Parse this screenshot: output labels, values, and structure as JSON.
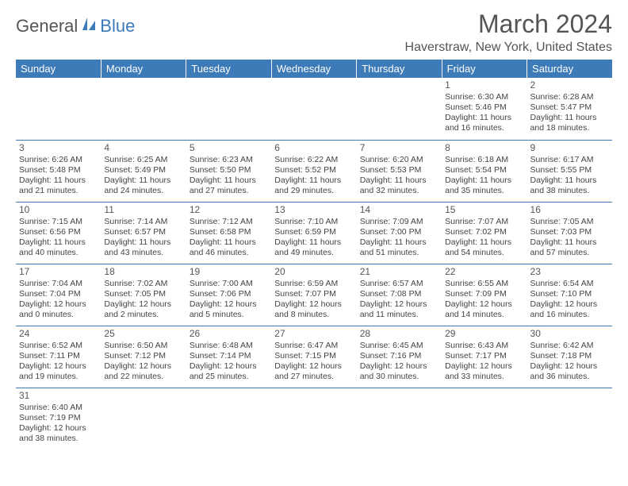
{
  "logo": {
    "text1": "General",
    "text2": "Blue"
  },
  "title": "March 2024",
  "subtitle": "Haverstraw, New York, United States",
  "headers": [
    "Sunday",
    "Monday",
    "Tuesday",
    "Wednesday",
    "Thursday",
    "Friday",
    "Saturday"
  ],
  "colors": {
    "header_bg": "#3d7ab8",
    "text": "#555555",
    "border": "#3d7ab8"
  },
  "weeks": [
    [
      null,
      null,
      null,
      null,
      null,
      {
        "n": "1",
        "sr": "Sunrise: 6:30 AM",
        "ss": "Sunset: 5:46 PM",
        "d1": "Daylight: 11 hours",
        "d2": "and 16 minutes."
      },
      {
        "n": "2",
        "sr": "Sunrise: 6:28 AM",
        "ss": "Sunset: 5:47 PM",
        "d1": "Daylight: 11 hours",
        "d2": "and 18 minutes."
      }
    ],
    [
      {
        "n": "3",
        "sr": "Sunrise: 6:26 AM",
        "ss": "Sunset: 5:48 PM",
        "d1": "Daylight: 11 hours",
        "d2": "and 21 minutes."
      },
      {
        "n": "4",
        "sr": "Sunrise: 6:25 AM",
        "ss": "Sunset: 5:49 PM",
        "d1": "Daylight: 11 hours",
        "d2": "and 24 minutes."
      },
      {
        "n": "5",
        "sr": "Sunrise: 6:23 AM",
        "ss": "Sunset: 5:50 PM",
        "d1": "Daylight: 11 hours",
        "d2": "and 27 minutes."
      },
      {
        "n": "6",
        "sr": "Sunrise: 6:22 AM",
        "ss": "Sunset: 5:52 PM",
        "d1": "Daylight: 11 hours",
        "d2": "and 29 minutes."
      },
      {
        "n": "7",
        "sr": "Sunrise: 6:20 AM",
        "ss": "Sunset: 5:53 PM",
        "d1": "Daylight: 11 hours",
        "d2": "and 32 minutes."
      },
      {
        "n": "8",
        "sr": "Sunrise: 6:18 AM",
        "ss": "Sunset: 5:54 PM",
        "d1": "Daylight: 11 hours",
        "d2": "and 35 minutes."
      },
      {
        "n": "9",
        "sr": "Sunrise: 6:17 AM",
        "ss": "Sunset: 5:55 PM",
        "d1": "Daylight: 11 hours",
        "d2": "and 38 minutes."
      }
    ],
    [
      {
        "n": "10",
        "sr": "Sunrise: 7:15 AM",
        "ss": "Sunset: 6:56 PM",
        "d1": "Daylight: 11 hours",
        "d2": "and 40 minutes."
      },
      {
        "n": "11",
        "sr": "Sunrise: 7:14 AM",
        "ss": "Sunset: 6:57 PM",
        "d1": "Daylight: 11 hours",
        "d2": "and 43 minutes."
      },
      {
        "n": "12",
        "sr": "Sunrise: 7:12 AM",
        "ss": "Sunset: 6:58 PM",
        "d1": "Daylight: 11 hours",
        "d2": "and 46 minutes."
      },
      {
        "n": "13",
        "sr": "Sunrise: 7:10 AM",
        "ss": "Sunset: 6:59 PM",
        "d1": "Daylight: 11 hours",
        "d2": "and 49 minutes."
      },
      {
        "n": "14",
        "sr": "Sunrise: 7:09 AM",
        "ss": "Sunset: 7:00 PM",
        "d1": "Daylight: 11 hours",
        "d2": "and 51 minutes."
      },
      {
        "n": "15",
        "sr": "Sunrise: 7:07 AM",
        "ss": "Sunset: 7:02 PM",
        "d1": "Daylight: 11 hours",
        "d2": "and 54 minutes."
      },
      {
        "n": "16",
        "sr": "Sunrise: 7:05 AM",
        "ss": "Sunset: 7:03 PM",
        "d1": "Daylight: 11 hours",
        "d2": "and 57 minutes."
      }
    ],
    [
      {
        "n": "17",
        "sr": "Sunrise: 7:04 AM",
        "ss": "Sunset: 7:04 PM",
        "d1": "Daylight: 12 hours",
        "d2": "and 0 minutes."
      },
      {
        "n": "18",
        "sr": "Sunrise: 7:02 AM",
        "ss": "Sunset: 7:05 PM",
        "d1": "Daylight: 12 hours",
        "d2": "and 2 minutes."
      },
      {
        "n": "19",
        "sr": "Sunrise: 7:00 AM",
        "ss": "Sunset: 7:06 PM",
        "d1": "Daylight: 12 hours",
        "d2": "and 5 minutes."
      },
      {
        "n": "20",
        "sr": "Sunrise: 6:59 AM",
        "ss": "Sunset: 7:07 PM",
        "d1": "Daylight: 12 hours",
        "d2": "and 8 minutes."
      },
      {
        "n": "21",
        "sr": "Sunrise: 6:57 AM",
        "ss": "Sunset: 7:08 PM",
        "d1": "Daylight: 12 hours",
        "d2": "and 11 minutes."
      },
      {
        "n": "22",
        "sr": "Sunrise: 6:55 AM",
        "ss": "Sunset: 7:09 PM",
        "d1": "Daylight: 12 hours",
        "d2": "and 14 minutes."
      },
      {
        "n": "23",
        "sr": "Sunrise: 6:54 AM",
        "ss": "Sunset: 7:10 PM",
        "d1": "Daylight: 12 hours",
        "d2": "and 16 minutes."
      }
    ],
    [
      {
        "n": "24",
        "sr": "Sunrise: 6:52 AM",
        "ss": "Sunset: 7:11 PM",
        "d1": "Daylight: 12 hours",
        "d2": "and 19 minutes."
      },
      {
        "n": "25",
        "sr": "Sunrise: 6:50 AM",
        "ss": "Sunset: 7:12 PM",
        "d1": "Daylight: 12 hours",
        "d2": "and 22 minutes."
      },
      {
        "n": "26",
        "sr": "Sunrise: 6:48 AM",
        "ss": "Sunset: 7:14 PM",
        "d1": "Daylight: 12 hours",
        "d2": "and 25 minutes."
      },
      {
        "n": "27",
        "sr": "Sunrise: 6:47 AM",
        "ss": "Sunset: 7:15 PM",
        "d1": "Daylight: 12 hours",
        "d2": "and 27 minutes."
      },
      {
        "n": "28",
        "sr": "Sunrise: 6:45 AM",
        "ss": "Sunset: 7:16 PM",
        "d1": "Daylight: 12 hours",
        "d2": "and 30 minutes."
      },
      {
        "n": "29",
        "sr": "Sunrise: 6:43 AM",
        "ss": "Sunset: 7:17 PM",
        "d1": "Daylight: 12 hours",
        "d2": "and 33 minutes."
      },
      {
        "n": "30",
        "sr": "Sunrise: 6:42 AM",
        "ss": "Sunset: 7:18 PM",
        "d1": "Daylight: 12 hours",
        "d2": "and 36 minutes."
      }
    ],
    [
      {
        "n": "31",
        "sr": "Sunrise: 6:40 AM",
        "ss": "Sunset: 7:19 PM",
        "d1": "Daylight: 12 hours",
        "d2": "and 38 minutes."
      },
      null,
      null,
      null,
      null,
      null,
      null
    ]
  ]
}
